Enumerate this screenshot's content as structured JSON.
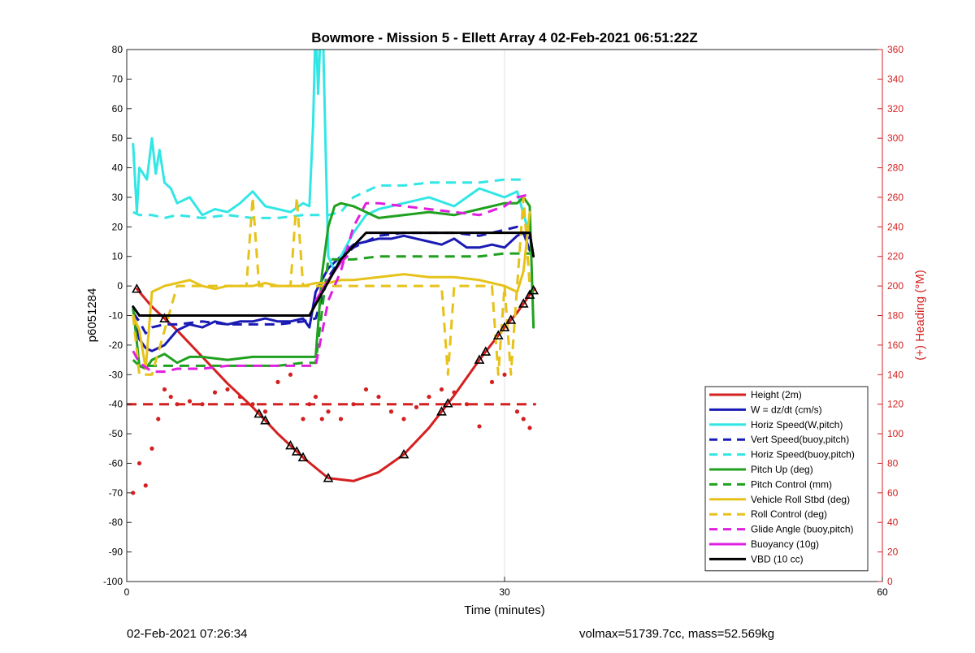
{
  "footer": {
    "left": "02-Feb-2021 07:26:34",
    "right": "volmax=51739.7cc, mass=52.569kg"
  },
  "chart_data": {
    "type": "line",
    "title": "Bowmore - Mission 5 - Ellett Array 4 02-Feb-2021 06:51:22Z",
    "xlabel": "Time (minutes)",
    "ylabel": "p6051284",
    "y2label": "(+) Heading (°M)",
    "xlim": [
      0,
      60
    ],
    "ylim": [
      -100,
      80
    ],
    "y2lim": [
      0,
      360
    ],
    "xticks": [
      "0",
      "30",
      "60"
    ],
    "yticks": [
      "80",
      "70",
      "60",
      "50",
      "40",
      "30",
      "20",
      "10",
      "0",
      "-10",
      "-20",
      "-30",
      "-40",
      "-50",
      "-60",
      "-70",
      "-80",
      "-90",
      "-100"
    ],
    "y2ticks": [
      "360",
      "340",
      "320",
      "300",
      "280",
      "260",
      "240",
      "220",
      "200",
      "180",
      "160",
      "140",
      "120",
      "100",
      "80",
      "60",
      "40",
      "20",
      "0"
    ],
    "grid": "major x lines",
    "legend_position": "bottom-right",
    "colors": {
      "height": "#d42020",
      "w": "#1a1ab4",
      "horiz": "#33e6e6",
      "pitch": "#1fa11f",
      "roll": "#e6c21a",
      "glide": "#e01ee0",
      "vbd": "#000000",
      "right_axis": "#d42020"
    },
    "series": [
      {
        "name": "Height (2m)",
        "style": "solid",
        "color": "#d42020",
        "x": [
          0.8,
          2,
          4,
          6,
          8,
          10,
          12,
          14,
          16,
          18,
          20,
          22,
          24,
          26,
          28,
          30,
          31,
          32,
          32.4
        ],
        "y": [
          -1,
          -7,
          -15,
          -24,
          -33,
          -41,
          -50,
          -58,
          -65,
          -66,
          -63,
          -57,
          -48,
          -37,
          -25,
          -14,
          -9,
          -3,
          -1
        ]
      },
      {
        "name": "W = dz/dt (cm/s)",
        "style": "solid",
        "color": "#1a1ab4",
        "x": [
          0.5,
          1,
          1.5,
          2,
          3,
          4,
          5,
          6,
          7,
          8,
          9,
          10,
          11,
          12,
          13,
          14,
          14.5,
          15,
          16,
          17,
          18,
          19,
          20,
          21,
          22,
          23,
          24,
          25,
          26,
          27,
          28,
          29,
          30,
          31,
          31.5,
          32
        ],
        "y": [
          -8,
          -18,
          -21,
          -22,
          -20,
          -15,
          -13,
          -14,
          -12,
          -13,
          -12,
          -12,
          -11,
          -12,
          -12,
          -11,
          -14,
          -2,
          6,
          10,
          14,
          15,
          16,
          16,
          17,
          16,
          15,
          14,
          16,
          13,
          13,
          14,
          13,
          17,
          18,
          12
        ]
      },
      {
        "name": "Horiz Speed(W,pitch)",
        "style": "solid",
        "color": "#33e6e6",
        "x": [
          0.5,
          0.8,
          1,
          1.3,
          1.6,
          2,
          2.3,
          2.6,
          3,
          3.5,
          4,
          5,
          6,
          7,
          8,
          9,
          10,
          11,
          12,
          13,
          14,
          14.5,
          14.8,
          15,
          15.2,
          15.5,
          15.8,
          16,
          16.5,
          17,
          18,
          19,
          20,
          22,
          24,
          26,
          28,
          30,
          31,
          31.8
        ],
        "y": [
          48,
          25,
          40,
          38,
          36,
          50,
          38,
          46,
          35,
          33,
          28,
          30,
          24,
          26,
          25,
          28,
          32,
          27,
          26,
          25,
          28,
          27,
          55,
          90,
          65,
          100,
          45,
          10,
          5,
          10,
          18,
          24,
          26,
          28,
          30,
          27,
          33,
          30,
          32,
          20
        ]
      },
      {
        "name": "Vert Speed(buoy,pitch)",
        "style": "dashed",
        "color": "#1a1ab4",
        "x": [
          0.5,
          1,
          1.5,
          2,
          3,
          4,
          6,
          8,
          10,
          12,
          14,
          15,
          16,
          17,
          18,
          20,
          22,
          24,
          26,
          28,
          30,
          31,
          32
        ],
        "y": [
          -9,
          -12,
          -16,
          -14,
          -13,
          -13,
          -12,
          -13,
          -13,
          -13,
          -12,
          -11,
          3,
          9,
          13,
          17,
          18,
          18,
          18,
          17,
          19,
          20,
          16
        ]
      },
      {
        "name": "Horiz Speed(buoy,pitch)",
        "style": "dashed",
        "color": "#33e6e6",
        "x": [
          0.5,
          1,
          2,
          3,
          4,
          6,
          8,
          10,
          12,
          14,
          15,
          16,
          17,
          18,
          19,
          20,
          22,
          24,
          26,
          28,
          30,
          31,
          31.5
        ],
        "y": [
          25,
          24,
          24,
          23,
          24,
          23,
          24,
          23,
          23,
          24,
          24,
          24,
          25,
          30,
          32,
          34,
          34,
          35,
          35,
          35,
          36,
          36,
          36
        ]
      },
      {
        "name": "Pitch Up (deg)",
        "style": "solid",
        "color": "#1fa11f",
        "x": [
          0.5,
          1,
          1.5,
          2,
          3,
          4,
          5,
          6,
          8,
          10,
          12,
          14,
          15,
          15.5,
          16,
          16.5,
          17,
          18,
          20,
          22,
          24,
          26,
          28,
          30,
          31,
          31.5,
          32,
          32.3
        ],
        "y": [
          -7,
          -27,
          -28,
          -25,
          -23,
          -26,
          -24,
          -24,
          -25,
          -24,
          -24,
          -24,
          -24,
          4,
          20,
          27,
          28,
          27,
          23,
          24,
          25,
          24,
          26,
          28,
          28,
          30,
          27,
          -14
        ]
      },
      {
        "name": "Pitch Control (mm)",
        "style": "dashed",
        "color": "#1fa11f",
        "x": [
          0.5,
          1,
          2,
          4,
          6,
          8,
          10,
          12,
          14,
          15,
          16,
          17,
          18,
          20,
          22,
          24,
          26,
          28,
          30,
          31,
          32
        ],
        "y": [
          -25,
          -27,
          -27,
          -27,
          -27,
          -27,
          -27,
          -27,
          -26,
          -26,
          9,
          9,
          9,
          10,
          10,
          10,
          10,
          10,
          11,
          11,
          11
        ]
      },
      {
        "name": "Vehicle Roll Stbd (deg)",
        "style": "solid",
        "color": "#e6c21a",
        "x": [
          0.5,
          1,
          1.5,
          2,
          3,
          4,
          5,
          6,
          7,
          8,
          9,
          10,
          11,
          12,
          13,
          14,
          15,
          16,
          17,
          18,
          20,
          22,
          24,
          26,
          28,
          30,
          31,
          31.5,
          32
        ],
        "y": [
          -10,
          -15,
          -28,
          -2,
          0,
          1,
          2,
          0,
          -1,
          0,
          0,
          0,
          1,
          0,
          0,
          0,
          1,
          1,
          2,
          2,
          3,
          4,
          3,
          3,
          2,
          0,
          -2,
          5,
          25
        ]
      },
      {
        "name": "Roll Control (deg)",
        "style": "dashed",
        "color": "#e6c21a",
        "x": [
          0.5,
          1,
          2,
          4,
          6,
          8,
          9.5,
          10,
          10.5,
          11,
          12,
          13,
          13.5,
          14,
          15,
          17,
          18,
          20,
          22,
          24,
          25,
          25.5,
          26,
          26.2,
          26.5,
          28,
          29,
          29.5,
          30,
          30.5,
          31,
          31.5,
          32
        ],
        "y": [
          -10,
          -30,
          -30,
          0,
          0,
          0,
          0,
          30,
          0,
          0,
          0,
          0,
          30,
          0,
          0,
          0,
          0,
          0,
          0,
          0,
          0,
          -30,
          0,
          0,
          0,
          0,
          0,
          -30,
          0,
          -30,
          0,
          30,
          0
        ]
      },
      {
        "name": "Glide Angle (buoy,pitch)",
        "style": "dashed",
        "color": "#e01ee0",
        "x": [
          0.5,
          1,
          2,
          3,
          4,
          6,
          8,
          10,
          12,
          14,
          15,
          16,
          17,
          18,
          19,
          20,
          22,
          24,
          26,
          28,
          30,
          31,
          32
        ],
        "y": [
          -22,
          -26,
          -29,
          -29,
          -28,
          -28,
          -27,
          -27,
          -27,
          -27,
          -27,
          -5,
          5,
          20,
          28,
          28,
          27,
          26,
          25,
          24,
          27,
          30,
          31
        ]
      },
      {
        "name": "Buoyancy (10g)",
        "style": "solid",
        "color": "#e01ee0",
        "x": [
          15,
          16,
          16.5,
          17,
          17.5
        ],
        "y": [
          -5,
          2,
          5,
          8,
          10
        ]
      },
      {
        "name": "VBD (10 cc)",
        "style": "solid",
        "color": "#000000",
        "x": [
          0.5,
          1,
          14.5,
          17,
          19,
          32,
          32.3
        ],
        "y": [
          -7,
          -10,
          -10,
          9,
          18,
          18,
          10
        ]
      },
      {
        "name": "Target depth",
        "style": "dashed",
        "color": "#d42020",
        "in_legend": false,
        "x": [
          0,
          32.5
        ],
        "y": [
          -40,
          -40
        ]
      },
      {
        "name": "Heading (right axis)",
        "style": "dots",
        "color": "#d42020",
        "in_legend": false,
        "axis": "right",
        "x": [
          0.5,
          1,
          1.5,
          2,
          2.5,
          3,
          3.5,
          4,
          5,
          6,
          7,
          8,
          9,
          10,
          11,
          12,
          13,
          14,
          14.5,
          15,
          15.5,
          16,
          17,
          18,
          19,
          20,
          21,
          22,
          23,
          24,
          25,
          26,
          27,
          28,
          29,
          30,
          31,
          31.5,
          32
        ],
        "y": [
          60,
          80,
          65,
          90,
          110,
          130,
          125,
          120,
          122,
          120,
          128,
          130,
          125,
          120,
          115,
          135,
          140,
          110,
          120,
          125,
          110,
          115,
          110,
          120,
          130,
          125,
          115,
          110,
          118,
          125,
          130,
          128,
          120,
          105,
          135,
          140,
          115,
          110,
          104
        ]
      }
    ],
    "markers": {
      "description": "triangle markers along the Height curve",
      "x": [
        0.8,
        3,
        10.5,
        11,
        13,
        13.5,
        14,
        16,
        22,
        25,
        25.5,
        28,
        28.5,
        29.5,
        30,
        30.5,
        31.5,
        32,
        32.3
      ]
    }
  }
}
